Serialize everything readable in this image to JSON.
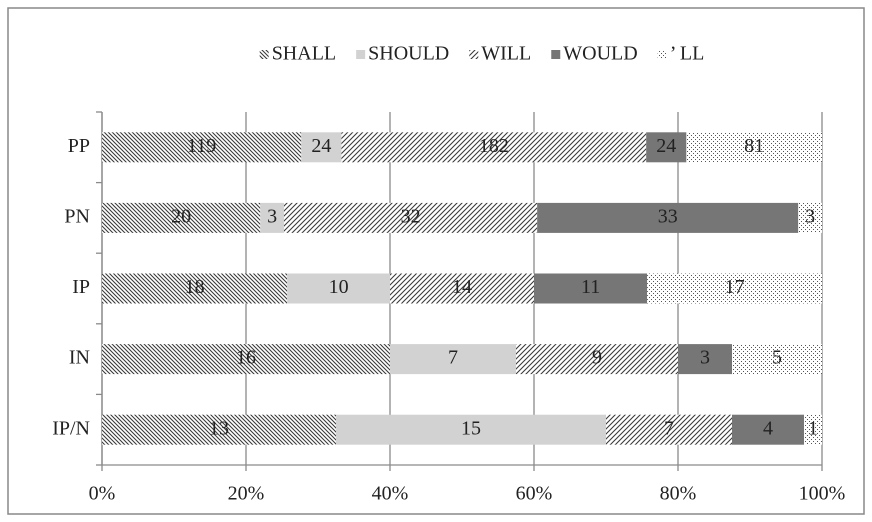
{
  "chart_data": {
    "type": "stacked_percent_barh",
    "categories": [
      "PP",
      "PN",
      "IP",
      "IN",
      "IP/N"
    ],
    "series": [
      {
        "name": "SHALL",
        "color": "#3a3a3a",
        "pattern": "backslash",
        "values": [
          119,
          20,
          18,
          16,
          13
        ]
      },
      {
        "name": "SHOULD",
        "color": "#d2d2d2",
        "pattern": "solid",
        "values": [
          24,
          3,
          10,
          7,
          15
        ]
      },
      {
        "name": "WILL",
        "color": "#3a3a3a",
        "pattern": "slash",
        "values": [
          182,
          32,
          14,
          9,
          7
        ]
      },
      {
        "name": "WOULD",
        "color": "#767676",
        "pattern": "solid",
        "values": [
          24,
          33,
          11,
          3,
          4
        ]
      },
      {
        "name": "’ LL",
        "color": "#555555",
        "pattern": "dots",
        "values": [
          81,
          3,
          17,
          5,
          1
        ]
      }
    ],
    "xlim": [
      0,
      100
    ],
    "xticks": [
      {
        "value": 0,
        "label": "0%"
      },
      {
        "value": 20,
        "label": "20%"
      },
      {
        "value": 40,
        "label": "40%"
      },
      {
        "value": 60,
        "label": "60%"
      },
      {
        "value": 80,
        "label": "80%"
      },
      {
        "value": 100,
        "label": "100%"
      }
    ],
    "grid": true,
    "legend": "top"
  }
}
